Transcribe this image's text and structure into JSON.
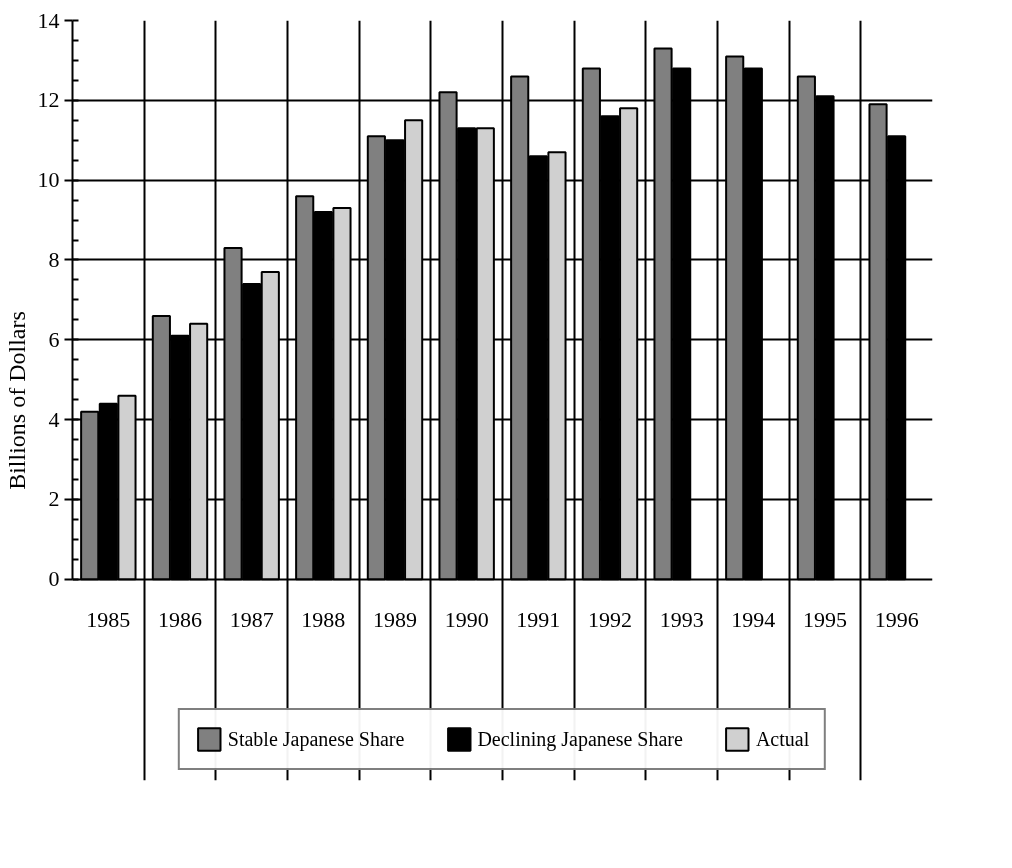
{
  "chart_data": {
    "type": "bar",
    "ylabel": "Billions of Dollars",
    "categories": [
      "1985",
      "1986",
      "1987",
      "1988",
      "1989",
      "1990",
      "1991",
      "1992",
      "1993",
      "1994",
      "1995",
      "1996"
    ],
    "series": [
      {
        "name": "Stable Japanese Share",
        "color": "#808080",
        "values": [
          4.2,
          6.6,
          8.3,
          9.6,
          11.1,
          12.2,
          12.6,
          12.8,
          13.3,
          13.1,
          12.6,
          11.9
        ]
      },
      {
        "name": "Declining Japanese Share",
        "color": "#000000",
        "values": [
          4.4,
          6.1,
          7.4,
          9.2,
          11.0,
          11.3,
          10.6,
          11.6,
          12.8,
          12.8,
          12.1,
          11.1
        ]
      },
      {
        "name": "Actual",
        "color": "#d0d0d0",
        "values": [
          4.6,
          6.4,
          7.7,
          9.3,
          11.5,
          11.3,
          10.7,
          11.8,
          null,
          null,
          null,
          null
        ]
      }
    ],
    "ylim": [
      0,
      14
    ],
    "yticks": [
      0,
      2,
      4,
      6,
      8,
      10,
      12,
      14
    ],
    "grid": true,
    "legend": "bottom"
  }
}
